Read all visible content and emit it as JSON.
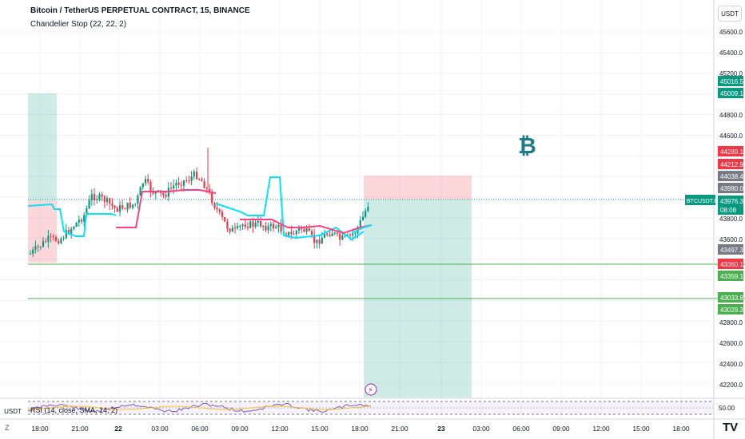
{
  "header": {
    "title": "Bitcoin / TetherUS PERPETUAL CONTRACT, 15, BINANCE",
    "indicator": "Chandelier Stop (22, 22, 2)"
  },
  "currency_label": "USDT",
  "rsi": {
    "label": "RSI (14, close, SMA, 14, 2)",
    "level": "50.00"
  },
  "timezone_icon": "Z",
  "logo": "TV",
  "bitcoin_symbol": "₿",
  "price_axis": {
    "ticks": [
      "45600.0",
      "45400.0",
      "45200.0",
      "44800.0",
      "44600.0",
      "43800.0",
      "43600.0",
      "42800.0",
      "42600.0",
      "42400.0",
      "42200.0"
    ]
  },
  "price_tags": [
    {
      "text": "45016.5",
      "bg": "#089981",
      "fg": "#ffffff"
    },
    {
      "text": "45009.1",
      "bg": "#089981",
      "fg": "#ffffff"
    },
    {
      "text": "44289.1",
      "bg": "#f23645",
      "fg": "#ffffff"
    },
    {
      "text": "44212.9",
      "bg": "#f23645",
      "fg": "#ffffff"
    },
    {
      "text": "44038.4",
      "bg": "#787b86",
      "fg": "#ffffff"
    },
    {
      "text": "43980.0",
      "bg": "#787b86",
      "fg": "#ffffff"
    },
    {
      "text": "43976.3",
      "bg": "#089981",
      "fg": "#ffffff"
    },
    {
      "text": "08:08",
      "bg": "#089981",
      "fg": "#ffffff"
    },
    {
      "text": "43497.3",
      "bg": "#787b86",
      "fg": "#ffffff"
    },
    {
      "text": "43360.1",
      "bg": "#f23645",
      "fg": "#ffffff"
    },
    {
      "text": "43359.1",
      "bg": "#4caf50",
      "fg": "#ffffff"
    },
    {
      "text": "43033.8",
      "bg": "#4caf50",
      "fg": "#ffffff"
    },
    {
      "text": "43029.3",
      "bg": "#4caf50",
      "fg": "#ffffff"
    }
  ],
  "symbol_tag": {
    "text": "BTCUSDT.P",
    "bg": "#089981"
  },
  "time_axis": [
    "18:00",
    "21:00",
    "22",
    "03:00",
    "06:00",
    "09:00",
    "12:00",
    "15:00",
    "18:00",
    "21:00",
    "23",
    "03:00",
    "06:00",
    "09:00",
    "12:00",
    "15:00",
    "18:00"
  ],
  "colors": {
    "up": "#089981",
    "down": "#f23645",
    "stop_long": "#00e5ff",
    "stop_short": "#ff4081",
    "hline": "#4caf50",
    "last_price_line": "#089981"
  }
}
